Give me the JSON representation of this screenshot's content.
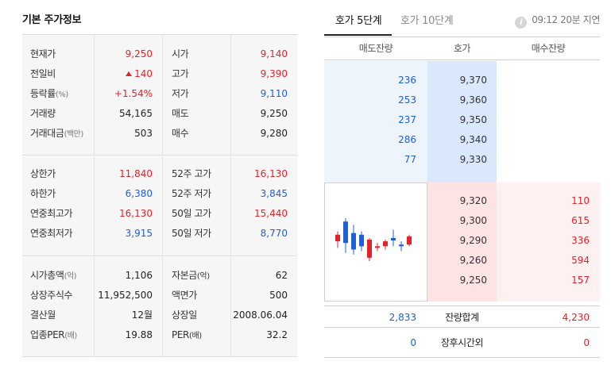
{
  "left": {
    "title": "기본 주가정보",
    "block1": [
      {
        "label": "현재가",
        "unit": "",
        "value": "9,250",
        "value_color": "red",
        "label2": "시가",
        "value2": "9,140",
        "value2_color": "red"
      },
      {
        "label": "전일비",
        "unit": "",
        "value": "140",
        "value_color": "red",
        "label2": "고가",
        "value2": "9,390",
        "value2_color": "red"
      },
      {
        "label": "등락률",
        "unit": "(%)",
        "value": "+1.54%",
        "value_color": "red",
        "label2": "저가",
        "value2": "9,110",
        "value2_color": "blue"
      },
      {
        "label": "거래량",
        "unit": "",
        "value": "54,165",
        "value_color": "",
        "label2": "매도",
        "value2": "9,250",
        "value2_color": ""
      },
      {
        "label": "거래대금",
        "unit": "(백만)",
        "value": "503",
        "value_color": "",
        "label2": "매수",
        "value2": "9,280",
        "value2_color": ""
      }
    ],
    "block2": [
      {
        "label": "상한가",
        "unit": "",
        "value": "11,840",
        "value_color": "red",
        "label2": "52주 고가",
        "value2": "16,130",
        "value2_color": "red"
      },
      {
        "label": "하한가",
        "unit": "",
        "value": "6,380",
        "value_color": "blue",
        "label2": "52주 저가",
        "value2": "3,845",
        "value2_color": "blue"
      },
      {
        "label": "연중최고가",
        "unit": "",
        "value": "16,130",
        "value_color": "red",
        "label2": "50일 고가",
        "value2": "15,440",
        "value2_color": "red"
      },
      {
        "label": "연중최저가",
        "unit": "",
        "value": "3,915",
        "value_color": "blue",
        "label2": "50일 저가",
        "value2": "8,770",
        "value2_color": "blue"
      }
    ],
    "block3": [
      {
        "label": "시가총액",
        "unit": "(억)",
        "value": "1,106",
        "value_color": "",
        "label2": "자본금",
        "unit2": "(억)",
        "value2": "62",
        "value2_color": ""
      },
      {
        "label": "상장주식수",
        "unit": "",
        "value": "11,952,500",
        "value_color": "",
        "label2": "액면가",
        "unit2": "",
        "value2": "500",
        "value2_color": ""
      },
      {
        "label": "결산월",
        "unit": "",
        "value": "12월",
        "value_color": "",
        "label2": "상장일",
        "unit2": "",
        "value2": "2008.06.04",
        "value2_color": ""
      },
      {
        "label": "업종PER",
        "unit": "(배)",
        "value": "19.88",
        "value_color": "",
        "label2": "PER",
        "unit2": "(배)",
        "value2": "32.2",
        "value2_color": ""
      }
    ]
  },
  "right": {
    "tabs": [
      "호가 5단계",
      "호가 10단계"
    ],
    "active_tab": 0,
    "delay_text": "09:12 20분 지연",
    "headers": [
      "매도잔량",
      "호가",
      "매수잔량"
    ],
    "sell": [
      {
        "qty": "236",
        "price": "9,370"
      },
      {
        "qty": "253",
        "price": "9,360"
      },
      {
        "qty": "237",
        "price": "9,350"
      },
      {
        "qty": "286",
        "price": "9,340"
      },
      {
        "qty": "77",
        "price": "9,330"
      }
    ],
    "buy": [
      {
        "price": "9,320",
        "qty": "110"
      },
      {
        "price": "9,300",
        "qty": "615"
      },
      {
        "price": "9,290",
        "qty": "336"
      },
      {
        "price": "9,260",
        "qty": "594"
      },
      {
        "price": "9,250",
        "qty": "157"
      }
    ],
    "total": {
      "sell": "2,833",
      "label": "잔량합계",
      "buy": "4,230"
    },
    "after_hours": {
      "sell": "0",
      "label": "장후시간외",
      "buy": "0"
    }
  },
  "candles": [
    {
      "dir": "up",
      "open": 9180,
      "close": 9220,
      "high": 9240,
      "low": 9140
    },
    {
      "dir": "down",
      "open": 9300,
      "close": 9170,
      "high": 9320,
      "low": 9110
    },
    {
      "dir": "down",
      "open": 9230,
      "close": 9130,
      "high": 9280,
      "low": 9100
    },
    {
      "dir": "down",
      "open": 9220,
      "close": 9150,
      "high": 9240,
      "low": 9120
    },
    {
      "dir": "up",
      "open": 9080,
      "close": 9190,
      "high": 9200,
      "low": 9060
    },
    {
      "dir": "up",
      "open": 9140,
      "close": 9150,
      "high": 9170,
      "low": 9120
    },
    {
      "dir": "up",
      "open": 9150,
      "close": 9180,
      "high": 9190,
      "low": 9130
    },
    {
      "dir": "down",
      "open": 9200,
      "close": 9185,
      "high": 9250,
      "low": 9150
    },
    {
      "dir": "down",
      "open": 9160,
      "close": 9150,
      "high": 9180,
      "low": 9120
    },
    {
      "dir": "up",
      "open": 9160,
      "close": 9210,
      "high": 9220,
      "low": 9150
    }
  ],
  "colors": {
    "red": "#e0242a",
    "blue": "#1f5fd6",
    "sell_bg": "#eef4fc",
    "buy_bg": "#fdf1f1"
  }
}
